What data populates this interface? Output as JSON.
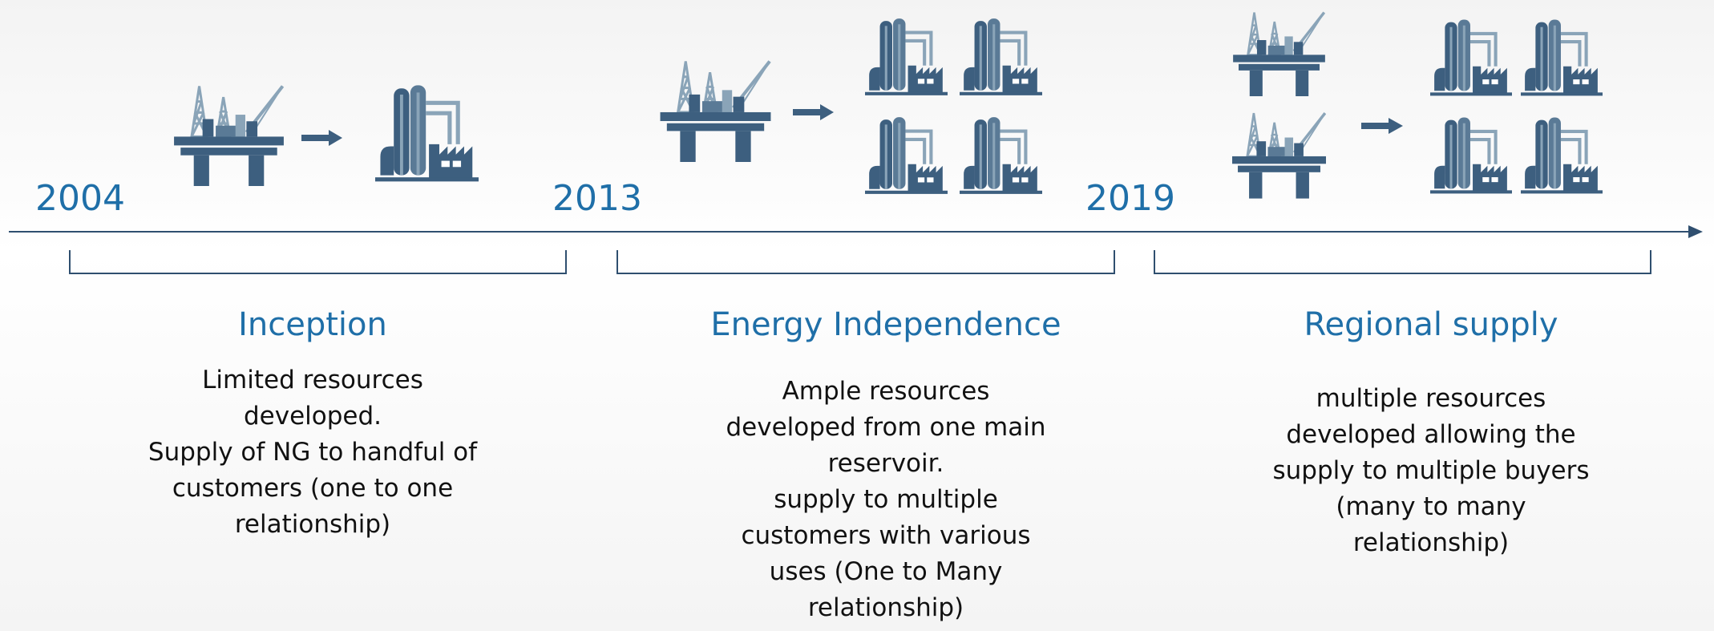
{
  "timeline": {
    "phases": [
      {
        "year": "2004",
        "title": "Inception",
        "description": [
          "Limited resources",
          "developed.",
          "Supply of NG to handful of",
          "customers (one to one",
          "relationship)"
        ]
      },
      {
        "year": "2013",
        "title": "Energy Independence",
        "description": [
          "Ample resources",
          "developed from one main",
          "reservoir.",
          "supply to multiple",
          "customers with various",
          "uses (One to Many",
          "relationship)"
        ]
      },
      {
        "year": "2019",
        "title": "Regional supply",
        "description": [
          "multiple resources",
          "developed allowing the",
          "supply to multiple buyers",
          "(many to many",
          "relationship)"
        ]
      }
    ]
  }
}
